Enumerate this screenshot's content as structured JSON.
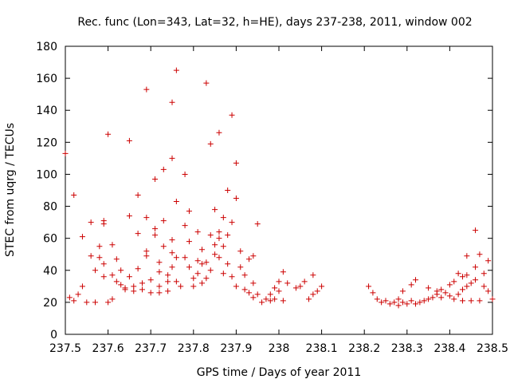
{
  "chart_data": {
    "type": "scatter",
    "title": "Rec. func (Lon=343, Lat=32, h=HE), days 237-238, 2011, window 002",
    "xlabel": "GPS time / Days of year 2011",
    "ylabel": "STEC from uqrg / TECUs",
    "xlim": [
      237.5,
      238.5
    ],
    "ylim": [
      0,
      180
    ],
    "x_ticks": [
      "237.5",
      "237.6",
      "237.7",
      "237.8",
      "237.9",
      "238",
      "238.1",
      "238.2",
      "238.3",
      "238.4",
      "238.5"
    ],
    "y_ticks": [
      "0",
      "20",
      "40",
      "60",
      "80",
      "100",
      "120",
      "140",
      "160",
      "180"
    ],
    "marker": "+",
    "color": "#cc0000",
    "grid": false,
    "points": [
      [
        237.5,
        113
      ],
      [
        237.51,
        23
      ],
      [
        237.52,
        87
      ],
      [
        237.52,
        21
      ],
      [
        237.53,
        25
      ],
      [
        237.54,
        61
      ],
      [
        237.54,
        30
      ],
      [
        237.55,
        20
      ],
      [
        237.56,
        70
      ],
      [
        237.56,
        49
      ],
      [
        237.57,
        20
      ],
      [
        237.57,
        40
      ],
      [
        237.58,
        48
      ],
      [
        237.58,
        55
      ],
      [
        237.59,
        71
      ],
      [
        237.59,
        69
      ],
      [
        237.59,
        44
      ],
      [
        237.59,
        36
      ],
      [
        237.6,
        20
      ],
      [
        237.6,
        125
      ],
      [
        237.61,
        22
      ],
      [
        237.61,
        56
      ],
      [
        237.61,
        37
      ],
      [
        237.62,
        47
      ],
      [
        237.62,
        33
      ],
      [
        237.63,
        40
      ],
      [
        237.63,
        31
      ],
      [
        237.64,
        28
      ],
      [
        237.64,
        29
      ],
      [
        237.65,
        121
      ],
      [
        237.65,
        74
      ],
      [
        237.65,
        36
      ],
      [
        237.66,
        30
      ],
      [
        237.66,
        27
      ],
      [
        237.67,
        87
      ],
      [
        237.67,
        63
      ],
      [
        237.67,
        41
      ],
      [
        237.68,
        32
      ],
      [
        237.68,
        28
      ],
      [
        237.69,
        153
      ],
      [
        237.69,
        73
      ],
      [
        237.69,
        52
      ],
      [
        237.69,
        49
      ],
      [
        237.7,
        34
      ],
      [
        237.7,
        26
      ],
      [
        237.71,
        97
      ],
      [
        237.71,
        66
      ],
      [
        237.71,
        62
      ],
      [
        237.72,
        45
      ],
      [
        237.72,
        39
      ],
      [
        237.72,
        30
      ],
      [
        237.72,
        26
      ],
      [
        237.73,
        103
      ],
      [
        237.73,
        71
      ],
      [
        237.73,
        55
      ],
      [
        237.74,
        37
      ],
      [
        237.74,
        33
      ],
      [
        237.74,
        27
      ],
      [
        237.75,
        145
      ],
      [
        237.75,
        110
      ],
      [
        237.75,
        59
      ],
      [
        237.75,
        51
      ],
      [
        237.75,
        42
      ],
      [
        237.76,
        165
      ],
      [
        237.76,
        83
      ],
      [
        237.76,
        48
      ],
      [
        237.76,
        33
      ],
      [
        237.77,
        30
      ],
      [
        237.78,
        100
      ],
      [
        237.78,
        68
      ],
      [
        237.78,
        48
      ],
      [
        237.79,
        77
      ],
      [
        237.79,
        58
      ],
      [
        237.79,
        42
      ],
      [
        237.8,
        35
      ],
      [
        237.8,
        30
      ],
      [
        237.81,
        64
      ],
      [
        237.81,
        46
      ],
      [
        237.81,
        38
      ],
      [
        237.82,
        53
      ],
      [
        237.82,
        44
      ],
      [
        237.82,
        32
      ],
      [
        237.83,
        157
      ],
      [
        237.83,
        45
      ],
      [
        237.83,
        35
      ],
      [
        237.84,
        119
      ],
      [
        237.84,
        62
      ],
      [
        237.84,
        40
      ],
      [
        237.85,
        78
      ],
      [
        237.85,
        56
      ],
      [
        237.85,
        50
      ],
      [
        237.86,
        126
      ],
      [
        237.86,
        64
      ],
      [
        237.86,
        60
      ],
      [
        237.86,
        48
      ],
      [
        237.87,
        73
      ],
      [
        237.87,
        55
      ],
      [
        237.87,
        38
      ],
      [
        237.88,
        90
      ],
      [
        237.88,
        62
      ],
      [
        237.88,
        44
      ],
      [
        237.89,
        137
      ],
      [
        237.89,
        70
      ],
      [
        237.89,
        36
      ],
      [
        237.9,
        107
      ],
      [
        237.9,
        85
      ],
      [
        237.9,
        30
      ],
      [
        237.91,
        52
      ],
      [
        237.91,
        42
      ],
      [
        237.92,
        28
      ],
      [
        237.92,
        37
      ],
      [
        237.93,
        47
      ],
      [
        237.93,
        26
      ],
      [
        237.94,
        49
      ],
      [
        237.94,
        32
      ],
      [
        237.94,
        23
      ],
      [
        237.95,
        69
      ],
      [
        237.95,
        25
      ],
      [
        237.96,
        20
      ],
      [
        237.97,
        22
      ],
      [
        237.98,
        25
      ],
      [
        237.98,
        21
      ],
      [
        237.99,
        29
      ],
      [
        237.99,
        22
      ],
      [
        238.0,
        33
      ],
      [
        238.0,
        27
      ],
      [
        238.01,
        39
      ],
      [
        238.01,
        21
      ],
      [
        238.02,
        32
      ],
      [
        238.04,
        29
      ],
      [
        238.05,
        30
      ],
      [
        238.06,
        33
      ],
      [
        238.07,
        22
      ],
      [
        238.08,
        37
      ],
      [
        238.08,
        25
      ],
      [
        238.09,
        27
      ],
      [
        238.1,
        30
      ],
      [
        238.21,
        30
      ],
      [
        238.22,
        26
      ],
      [
        238.23,
        22
      ],
      [
        238.24,
        20
      ],
      [
        238.25,
        21
      ],
      [
        238.26,
        19
      ],
      [
        238.27,
        20
      ],
      [
        238.28,
        18
      ],
      [
        238.28,
        22
      ],
      [
        238.29,
        20
      ],
      [
        238.29,
        27
      ],
      [
        238.3,
        19
      ],
      [
        238.31,
        31
      ],
      [
        238.31,
        21
      ],
      [
        238.32,
        34
      ],
      [
        238.32,
        19
      ],
      [
        238.33,
        20
      ],
      [
        238.34,
        21
      ],
      [
        238.35,
        29
      ],
      [
        238.35,
        22
      ],
      [
        238.36,
        23
      ],
      [
        238.37,
        27
      ],
      [
        238.37,
        25
      ],
      [
        238.38,
        28
      ],
      [
        238.38,
        23
      ],
      [
        238.39,
        26
      ],
      [
        238.4,
        31
      ],
      [
        238.4,
        24
      ],
      [
        238.41,
        33
      ],
      [
        238.41,
        22
      ],
      [
        238.42,
        38
      ],
      [
        238.42,
        25
      ],
      [
        238.43,
        36
      ],
      [
        238.43,
        28
      ],
      [
        238.43,
        21
      ],
      [
        238.44,
        49
      ],
      [
        238.44,
        37
      ],
      [
        238.44,
        30
      ],
      [
        238.45,
        32
      ],
      [
        238.45,
        21
      ],
      [
        238.46,
        65
      ],
      [
        238.46,
        42
      ],
      [
        238.46,
        34
      ],
      [
        238.47,
        50
      ],
      [
        238.47,
        21
      ],
      [
        238.48,
        38
      ],
      [
        238.48,
        30
      ],
      [
        238.49,
        46
      ],
      [
        238.49,
        27
      ],
      [
        238.5,
        22
      ]
    ]
  }
}
